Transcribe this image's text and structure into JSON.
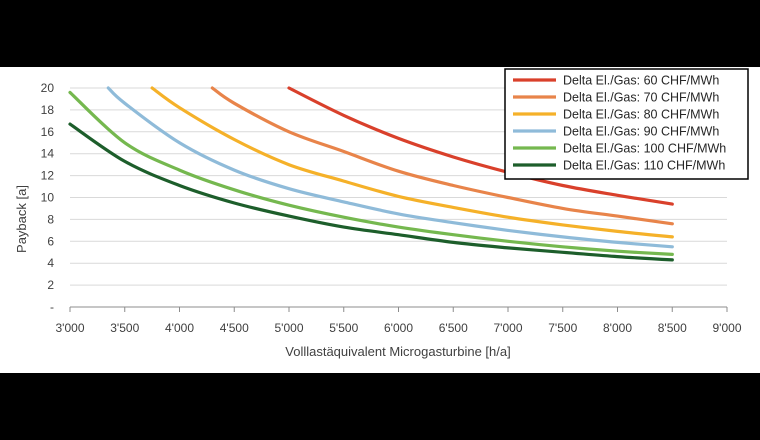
{
  "chart_data": {
    "type": "line",
    "title": "",
    "xlabel": "Volllastäquivalent Microgasturbine [h/a]",
    "ylabel": "Payback [a]",
    "xlim": [
      3000,
      9000
    ],
    "ylim": [
      0,
      20
    ],
    "x_ticks": [
      3000,
      3500,
      4000,
      4500,
      5000,
      5500,
      6000,
      6500,
      7000,
      7500,
      8000,
      8500,
      9000
    ],
    "x_tick_labels": [
      "3'000",
      "3'500",
      "4'000",
      "4'500",
      "5'000",
      "5'500",
      "6'000",
      "6'500",
      "7'000",
      "7'500",
      "8'000",
      "8'500",
      "9'000"
    ],
    "y_ticks": [
      0,
      2,
      4,
      6,
      8,
      10,
      12,
      14,
      16,
      18,
      20
    ],
    "y_tick_labels": [
      "-",
      "2",
      "4",
      "6",
      "8",
      "10",
      "12",
      "14",
      "16",
      "18",
      "20"
    ],
    "grid": "horizontal",
    "legend_position": "top-right",
    "series": [
      {
        "name": "Delta El./Gas: 60 CHF/MWh",
        "color": "#d9402b",
        "x": [
          5000,
          5500,
          6000,
          6500,
          7000,
          7500,
          8000,
          8500
        ],
        "values": [
          20.0,
          17.5,
          15.4,
          13.7,
          12.3,
          11.1,
          10.2,
          9.4
        ]
      },
      {
        "name": "Delta El./Gas: 70 CHF/MWh",
        "color": "#e8844a",
        "x": [
          4300,
          4500,
          5000,
          5500,
          6000,
          6500,
          7000,
          7500,
          8000,
          8500
        ],
        "values": [
          20.0,
          18.6,
          16.0,
          14.2,
          12.4,
          11.1,
          10.0,
          9.0,
          8.3,
          7.6
        ]
      },
      {
        "name": "Delta El./Gas: 80 CHF/MWh",
        "color": "#f5b129",
        "x": [
          3750,
          4000,
          4500,
          5000,
          5500,
          6000,
          6500,
          7000,
          7500,
          8000,
          8500
        ],
        "values": [
          20.0,
          18.2,
          15.3,
          13.0,
          11.5,
          10.1,
          9.1,
          8.2,
          7.5,
          6.9,
          6.4
        ]
      },
      {
        "name": "Delta El./Gas: 90 CHF/MWh",
        "color": "#8fbbd9",
        "x": [
          3350,
          3500,
          4000,
          4500,
          5000,
          5500,
          6000,
          6500,
          7000,
          7500,
          8000,
          8500
        ],
        "values": [
          20.0,
          18.6,
          15.0,
          12.5,
          10.8,
          9.6,
          8.5,
          7.7,
          7.0,
          6.4,
          5.9,
          5.5
        ]
      },
      {
        "name": "Delta El./Gas: 100 CHF/MWh",
        "color": "#75b84f",
        "x": [
          3000,
          3500,
          4000,
          4500,
          5000,
          5500,
          6000,
          6500,
          7000,
          7500,
          8000,
          8500
        ],
        "values": [
          19.6,
          15.0,
          12.5,
          10.7,
          9.3,
          8.2,
          7.3,
          6.6,
          6.0,
          5.5,
          5.1,
          4.8
        ]
      },
      {
        "name": "Delta El./Gas: 110 CHF/MWh",
        "color": "#1d5e2b",
        "x": [
          3000,
          3500,
          4000,
          4500,
          5000,
          5500,
          6000,
          6500,
          7000,
          7500,
          8000,
          8500
        ],
        "values": [
          16.7,
          13.3,
          11.1,
          9.5,
          8.3,
          7.3,
          6.6,
          5.9,
          5.4,
          5.0,
          4.6,
          4.3
        ]
      }
    ]
  }
}
